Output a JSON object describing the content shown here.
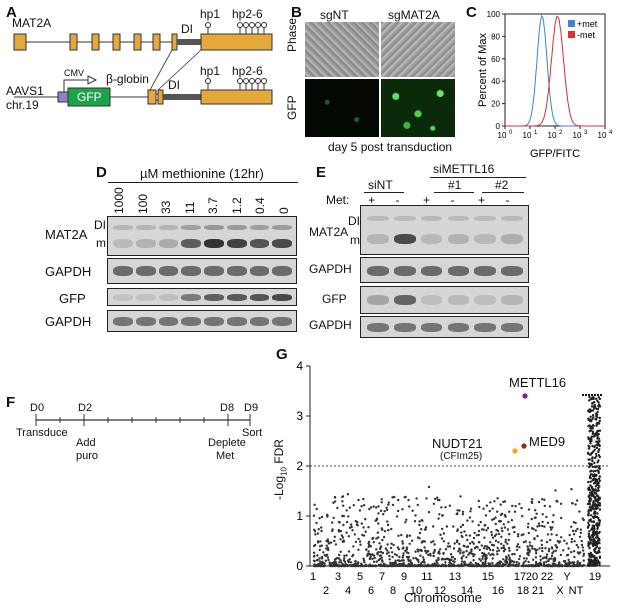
{
  "panels": {
    "a": "A",
    "b": "B",
    "c": "C",
    "d": "D",
    "e": "E",
    "f": "F",
    "g": "G"
  },
  "panel_a": {
    "gene": "MAT2A",
    "di": "DI",
    "hp1": "hp1",
    "hp26": "hp2-6",
    "locus_line1": "AAVS1",
    "locus_line2": "chr.19",
    "cmv": "CMV",
    "gfp": "GFP",
    "globin": "β-globin",
    "di2": "DI",
    "hp1b": "hp1",
    "hp26b": "hp2-6"
  },
  "panel_b": {
    "col1": "sgNT",
    "col2": "sgMAT2A",
    "row1": "Phase",
    "row2": "GFP",
    "caption": "day 5 post transduction"
  },
  "panel_c": {
    "ylabel": "Percent of Max",
    "xlabel": "GFP/FITC",
    "legend1": "+met",
    "legend2": "-met",
    "color1": "#3a86d4",
    "color2": "#d8303a",
    "yticks": [
      "0",
      "20",
      "40",
      "60",
      "80",
      "100"
    ],
    "xticks": [
      "10",
      "10",
      "10",
      "10",
      "10"
    ],
    "xexp": [
      "0",
      "1",
      "2",
      "3",
      "4"
    ]
  },
  "panel_d": {
    "title": "µM methionine (12hr)",
    "concs": [
      "1000",
      "100",
      "33",
      "11",
      "3.7",
      "1.2",
      "0.4",
      "0"
    ],
    "intensities1": [
      0.05,
      0.1,
      0.15,
      0.62,
      0.88,
      0.78,
      0.66,
      0.74
    ],
    "intensities2": [
      0.05,
      0.06,
      0.08,
      0.5,
      0.66,
      0.7,
      0.72,
      0.8
    ],
    "di": "DI",
    "m": "m",
    "row1": "MAT2A",
    "row2": "GAPDH",
    "row3": "GFP",
    "row4": "GAPDH"
  },
  "panel_e": {
    "siMETTL16": "siMETTL16",
    "siNT": "siNT",
    "n1": "#1",
    "n2": "#2",
    "met": "Met:",
    "signs": [
      "+",
      "-",
      "+",
      "-",
      "+",
      "-"
    ],
    "mat_intensity": [
      0.08,
      0.72,
      0.06,
      0.1,
      0.06,
      0.12
    ],
    "gfp_intensity": [
      0.2,
      0.6,
      0.05,
      0.08,
      0.05,
      0.1
    ],
    "di": "DI",
    "m": "m",
    "row1": "MAT2A",
    "row2": "GAPDH",
    "row3": "GFP",
    "row4": "GAPDH"
  },
  "panel_f": {
    "days": [
      "D0",
      "D2",
      "D8",
      "D9"
    ],
    "events": [
      "Transduce",
      "Add",
      "puro",
      "Deplete",
      "Met",
      "Sort"
    ]
  },
  "panel_g": {
    "ylabel_main": "-Log",
    "ylabel_sub": "10",
    "ylabel_end": " FDR",
    "xlabel": "Chromosome",
    "yticks": [
      "0",
      "1",
      "2",
      "3",
      "4"
    ],
    "chrom_row1": [
      "1",
      "3",
      "5",
      "7",
      "9",
      "11",
      "13",
      "15",
      "17",
      "19"
    ],
    "chrom_row2": [
      "2",
      "4",
      "6",
      "8",
      "10",
      "12",
      "14",
      "16",
      "18",
      "21",
      "X",
      "NT"
    ],
    "chrom_extra": [
      "20",
      "22",
      "Y"
    ],
    "hits": [
      {
        "label": "METTL16",
        "color": "#7a1f8c",
        "y": 3.4
      },
      {
        "label": "MED9",
        "color": "#a02418",
        "y": 2.4
      },
      {
        "label": "NUDT21",
        "sub": "(CFIm25)",
        "color": "#f5a623",
        "y": 2.3
      }
    ],
    "threshold": 2.0
  }
}
